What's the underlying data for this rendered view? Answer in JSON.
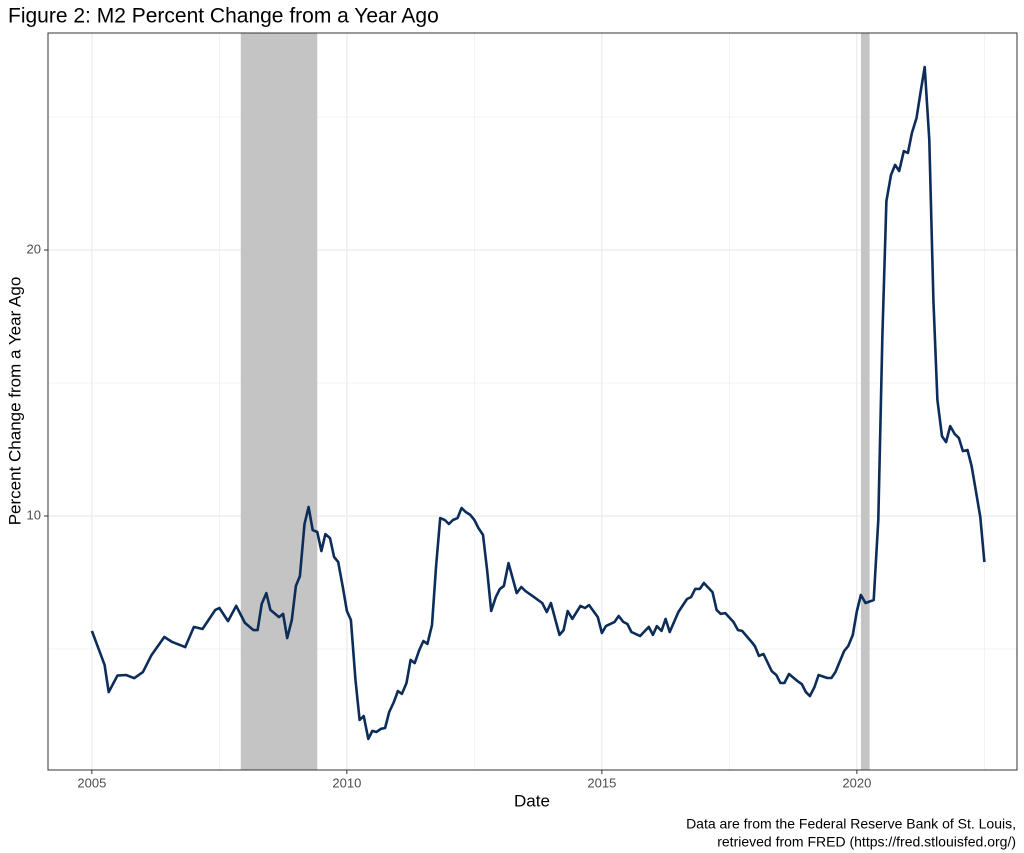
{
  "chart_data": {
    "type": "line",
    "title": "Figure 2: M2 Percent Change from a Year Ago",
    "x_label": "Date",
    "y_label": "Percent Change from a Year Ago",
    "caption": [
      "Data are from the Federal Reserve Bank of St. Louis,",
      "retrieved from FRED (https://fred.stlouisfed.org/)"
    ],
    "color": "#0c2c5a",
    "shade_color": "#c4c4c4",
    "shaded_regions": [
      [
        2007.92,
        2009.42
      ],
      [
        2020.08,
        2020.25
      ]
    ],
    "xlim": [
      2004.14,
      2023.14
    ],
    "xticks": [
      2005,
      2010,
      2015,
      2020
    ],
    "x_minor_ticks": [
      2007.5,
      2012.5,
      2017.5,
      2022.5
    ],
    "ylim": [
      0.45,
      28.16
    ],
    "yticks": [
      10,
      20
    ],
    "y_minor_ticks": [
      5,
      15,
      25
    ],
    "grid": true,
    "x": [
      2005.0,
      2005.25,
      2005.33,
      2005.5,
      2005.67,
      2005.83,
      2006.0,
      2006.17,
      2006.42,
      2006.58,
      2006.83,
      2007.0,
      2007.17,
      2007.42,
      2007.5,
      2007.67,
      2007.83,
      2008.0,
      2008.17,
      2008.25,
      2008.33,
      2008.42,
      2008.5,
      2008.67,
      2008.75,
      2008.83,
      2008.92,
      2009.0,
      2009.08,
      2009.17,
      2009.25,
      2009.33,
      2009.42,
      2009.5,
      2009.58,
      2009.67,
      2009.75,
      2009.83,
      2009.92,
      2010.0,
      2010.08,
      2010.17,
      2010.25,
      2010.33,
      2010.42,
      2010.5,
      2010.58,
      2010.67,
      2010.75,
      2010.83,
      2010.92,
      2011.0,
      2011.08,
      2011.17,
      2011.25,
      2011.33,
      2011.42,
      2011.5,
      2011.58,
      2011.67,
      2011.75,
      2011.83,
      2011.92,
      2012.0,
      2012.08,
      2012.17,
      2012.25,
      2012.33,
      2012.42,
      2012.5,
      2012.58,
      2012.67,
      2012.75,
      2012.83,
      2012.92,
      2013.0,
      2013.08,
      2013.17,
      2013.25,
      2013.33,
      2013.42,
      2013.5,
      2013.67,
      2013.83,
      2013.92,
      2014.0,
      2014.08,
      2014.17,
      2014.25,
      2014.33,
      2014.42,
      2014.58,
      2014.67,
      2014.75,
      2014.92,
      2015.0,
      2015.08,
      2015.25,
      2015.33,
      2015.42,
      2015.5,
      2015.58,
      2015.75,
      2015.92,
      2016.0,
      2016.08,
      2016.17,
      2016.25,
      2016.33,
      2016.5,
      2016.67,
      2016.75,
      2016.83,
      2016.92,
      2017.0,
      2017.17,
      2017.25,
      2017.33,
      2017.42,
      2017.58,
      2017.67,
      2017.75,
      2017.92,
      2018.0,
      2018.08,
      2018.17,
      2018.33,
      2018.42,
      2018.5,
      2018.58,
      2018.67,
      2018.83,
      2018.92,
      2019.0,
      2019.08,
      2019.17,
      2019.25,
      2019.42,
      2019.5,
      2019.58,
      2019.67,
      2019.75,
      2019.83,
      2019.92,
      2020.0,
      2020.08,
      2020.17,
      2020.33,
      2020.42,
      2020.5,
      2020.58,
      2020.67,
      2020.75,
      2020.83,
      2020.92,
      2021.0,
      2021.08,
      2021.17,
      2021.25,
      2021.33,
      2021.42,
      2021.5,
      2021.58,
      2021.67,
      2021.75,
      2021.83,
      2021.92,
      2022.0,
      2022.08,
      2022.17,
      2022.25,
      2022.33,
      2022.42,
      2022.5
    ],
    "values": [
      5.68,
      4.4,
      3.38,
      4.0,
      4.02,
      3.9,
      4.13,
      4.77,
      5.45,
      5.26,
      5.07,
      5.83,
      5.75,
      6.47,
      6.54,
      6.05,
      6.62,
      5.98,
      5.71,
      5.71,
      6.69,
      7.1,
      6.47,
      6.2,
      6.32,
      5.41,
      6.09,
      7.37,
      7.74,
      9.7,
      10.34,
      9.47,
      9.4,
      8.68,
      9.32,
      9.17,
      8.46,
      8.27,
      7.33,
      6.43,
      6.09,
      3.83,
      2.33,
      2.48,
      1.62,
      1.92,
      1.88,
      2.0,
      2.03,
      2.63,
      3.0,
      3.42,
      3.31,
      3.72,
      4.59,
      4.47,
      4.96,
      5.3,
      5.19,
      5.9,
      8.12,
      9.92,
      9.85,
      9.7,
      9.85,
      9.92,
      10.3,
      10.15,
      10.04,
      9.85,
      9.55,
      9.29,
      7.97,
      6.43,
      6.95,
      7.26,
      7.37,
      8.23,
      7.67,
      7.1,
      7.33,
      7.18,
      6.95,
      6.73,
      6.39,
      6.73,
      6.17,
      5.53,
      5.71,
      6.43,
      6.13,
      6.62,
      6.54,
      6.65,
      6.2,
      5.6,
      5.86,
      6.02,
      6.24,
      6.02,
      5.94,
      5.64,
      5.49,
      5.83,
      5.53,
      5.86,
      5.68,
      6.13,
      5.64,
      6.39,
      6.88,
      6.95,
      7.26,
      7.26,
      7.48,
      7.14,
      6.47,
      6.32,
      6.35,
      6.02,
      5.71,
      5.68,
      5.3,
      5.11,
      4.74,
      4.81,
      4.17,
      4.02,
      3.72,
      3.72,
      4.06,
      3.8,
      3.68,
      3.38,
      3.23,
      3.57,
      4.02,
      3.91,
      3.91,
      4.13,
      4.55,
      4.92,
      5.11,
      5.53,
      6.43,
      7.03,
      6.73,
      6.84,
      9.85,
      16.8,
      21.84,
      22.82,
      23.2,
      22.97,
      23.72,
      23.65,
      24.4,
      24.96,
      25.94,
      26.88,
      24.14,
      18.12,
      14.36,
      13.0,
      12.78,
      13.38,
      13.08,
      12.93,
      12.44,
      12.48,
      11.88,
      10.98,
      9.96,
      8.27
    ]
  }
}
